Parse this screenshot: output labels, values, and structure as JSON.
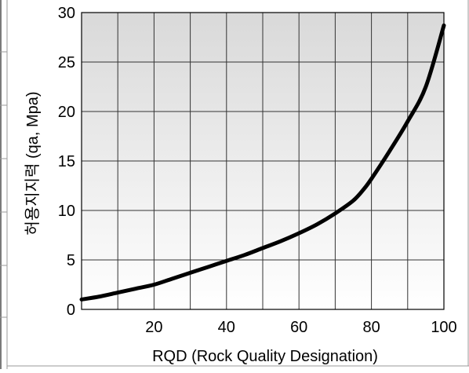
{
  "chart_data": {
    "type": "line",
    "xlabel": "RQD (Rock Quality Designation)",
    "ylabel": "허용지지력 (qa, Mpa)",
    "xlim": [
      0,
      100
    ],
    "ylim": [
      0,
      30
    ],
    "x_ticks": [
      20,
      40,
      60,
      80,
      100
    ],
    "y_ticks": [
      0,
      5,
      10,
      15,
      20,
      25,
      30
    ],
    "grid": true,
    "background": "vertical gradient, light gray to white",
    "series": [
      {
        "color": "#000000",
        "x": [
          0,
          5,
          10,
          15,
          20,
          25,
          30,
          35,
          40,
          45,
          50,
          55,
          60,
          65,
          70,
          75,
          78,
          80,
          85,
          90,
          95,
          100
        ],
        "y": [
          1.0,
          1.3,
          1.7,
          2.1,
          2.5,
          3.1,
          3.7,
          4.3,
          4.9,
          5.5,
          6.2,
          6.9,
          7.7,
          8.6,
          9.7,
          11.0,
          12.2,
          13.2,
          16.0,
          19.0,
          22.5,
          28.7
        ]
      }
    ]
  }
}
